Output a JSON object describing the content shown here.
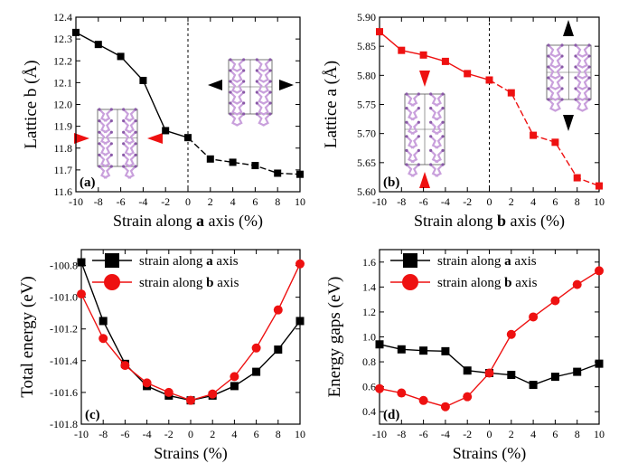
{
  "colors": {
    "series_a": "#000000",
    "series_b": "#ee1111",
    "molecule": "#c9a0dc",
    "molecule_edge": "#8a5aa8",
    "arrow_red": "#ee1111",
    "arrow_black": "#000000"
  },
  "chart_data": [
    {
      "id": "a",
      "type": "line",
      "panel_label": "(a)",
      "xlabel_parts": [
        "Strain along ",
        "a",
        " axis (%)"
      ],
      "ylabel": "Lattice b (Å)",
      "xlim": [
        -10,
        10
      ],
      "ylim": [
        11.6,
        12.4
      ],
      "xticks": [
        -10,
        -8,
        -6,
        -4,
        -2,
        0,
        2,
        4,
        6,
        8,
        10
      ],
      "yticks": [
        11.6,
        11.7,
        11.8,
        11.9,
        12.0,
        12.1,
        12.2,
        12.3,
        12.4
      ],
      "ytick_labels": [
        "11.6",
        "11.7",
        "11.8",
        "11.9",
        "12.0",
        "12.1",
        "12.2",
        "12.3",
        "12.4"
      ],
      "dashed_vline_x": 0,
      "series": [
        {
          "color": "series_a",
          "marker": "square",
          "dashed_right": true,
          "x": [
            -10,
            -8,
            -6,
            -4,
            -2,
            0,
            2,
            4,
            6,
            8,
            10
          ],
          "y": [
            12.33,
            12.275,
            12.22,
            12.11,
            11.88,
            11.848,
            11.75,
            11.735,
            11.72,
            11.685,
            11.68
          ]
        }
      ]
    },
    {
      "id": "b",
      "type": "line",
      "panel_label": "(b)",
      "xlabel_parts": [
        "Strain along ",
        "b",
        " axis (%)"
      ],
      "ylabel": "Lattice a (Å)",
      "xlim": [
        -10,
        10
      ],
      "ylim": [
        5.6,
        5.9
      ],
      "xticks": [
        -10,
        -8,
        -6,
        -4,
        -2,
        0,
        2,
        4,
        6,
        8,
        10
      ],
      "yticks": [
        5.6,
        5.65,
        5.7,
        5.75,
        5.8,
        5.85,
        5.9
      ],
      "ytick_labels": [
        "5.60",
        "5.65",
        "5.70",
        "5.75",
        "5.80",
        "5.85",
        "5.90"
      ],
      "dashed_vline_x": 0,
      "series": [
        {
          "color": "series_b",
          "marker": "square",
          "dashed_right": true,
          "x": [
            -10,
            -8,
            -6,
            -4,
            -2,
            0,
            2,
            4,
            6,
            8,
            10
          ],
          "y": [
            5.875,
            5.843,
            5.835,
            5.824,
            5.803,
            5.792,
            5.77,
            5.697,
            5.685,
            5.624,
            5.61
          ]
        }
      ]
    },
    {
      "id": "c",
      "type": "line",
      "panel_label": "(c)",
      "xlabel_parts": [
        "Strains (%)"
      ],
      "ylabel": "Total energy (eV)",
      "xlim": [
        -10,
        10
      ],
      "ylim": [
        -101.8,
        -100.7
      ],
      "xticks": [
        -10,
        -8,
        -6,
        -4,
        -2,
        0,
        2,
        4,
        6,
        8,
        10
      ],
      "yticks": [
        -101.8,
        -101.6,
        -101.4,
        -101.2,
        -101.0,
        -100.8
      ],
      "ytick_labels": [
        "-101.8",
        "-101.6",
        "-101.4",
        "-101.2",
        "-101.0",
        "-100.8"
      ],
      "legend": {
        "placement": "top-right",
        "entries": [
          {
            "series": 0,
            "parts": [
              "strain along ",
              "a",
              " axis"
            ]
          },
          {
            "series": 1,
            "parts": [
              "strain along ",
              "b",
              " axis"
            ]
          }
        ]
      },
      "series": [
        {
          "color": "series_a",
          "marker": "square",
          "x": [
            -10,
            -8,
            -6,
            -4,
            -2,
            0,
            2,
            4,
            6,
            8,
            10
          ],
          "y": [
            -100.78,
            -101.15,
            -101.42,
            -101.56,
            -101.62,
            -101.65,
            -101.62,
            -101.56,
            -101.47,
            -101.33,
            -101.15
          ]
        },
        {
          "color": "series_b",
          "marker": "circle",
          "x": [
            -10,
            -8,
            -6,
            -4,
            -2,
            0,
            2,
            4,
            6,
            8,
            10
          ],
          "y": [
            -100.98,
            -101.26,
            -101.43,
            -101.54,
            -101.6,
            -101.65,
            -101.61,
            -101.5,
            -101.32,
            -101.08,
            -100.79
          ]
        }
      ]
    },
    {
      "id": "d",
      "type": "line",
      "panel_label": "(d)",
      "xlabel_parts": [
        "Strains (%)"
      ],
      "ylabel": "Energy gaps (eV)",
      "xlim": [
        -10,
        10
      ],
      "ylim": [
        0.3,
        1.7
      ],
      "xticks": [
        -10,
        -8,
        -6,
        -4,
        -2,
        0,
        2,
        4,
        6,
        8,
        10
      ],
      "yticks": [
        0.4,
        0.6,
        0.8,
        1.0,
        1.2,
        1.4,
        1.6
      ],
      "ytick_labels": [
        "0.4",
        "0.6",
        "0.8",
        "1.0",
        "1.2",
        "1.4",
        "1.6"
      ],
      "legend": {
        "placement": "top-right",
        "entries": [
          {
            "series": 0,
            "parts": [
              "strain along ",
              "a",
              " axis"
            ]
          },
          {
            "series": 1,
            "parts": [
              "strain along ",
              "b",
              " axis"
            ]
          }
        ]
      },
      "series": [
        {
          "color": "series_a",
          "marker": "square",
          "x": [
            -10,
            -8,
            -6,
            -4,
            -2,
            0,
            2,
            4,
            6,
            8,
            10
          ],
          "y": [
            0.94,
            0.9,
            0.89,
            0.885,
            0.73,
            0.71,
            0.695,
            0.615,
            0.68,
            0.72,
            0.785
          ]
        },
        {
          "color": "series_b",
          "marker": "circle",
          "x": [
            -10,
            -8,
            -6,
            -4,
            -2,
            0,
            2,
            4,
            6,
            8,
            10
          ],
          "y": [
            0.585,
            0.55,
            0.49,
            0.44,
            0.52,
            0.71,
            1.02,
            1.16,
            1.29,
            1.42,
            1.53
          ]
        }
      ]
    }
  ]
}
